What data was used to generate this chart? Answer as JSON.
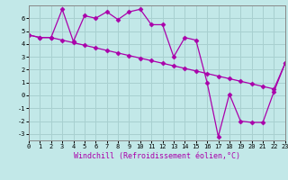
{
  "xlabel": "Windchill (Refroidissement éolien,°C)",
  "bg_color": "#c2e8e8",
  "grid_color": "#a8d0d0",
  "line_color": "#aa00aa",
  "line1": [
    4.7,
    4.5,
    4.5,
    6.7,
    4.2,
    6.2,
    6.0,
    6.5,
    5.9,
    6.5,
    6.7,
    5.5,
    5.5,
    3.0,
    4.5,
    4.3,
    1.0,
    -3.2,
    0.1,
    -2.0,
    -2.1,
    -2.1,
    0.3,
    2.5
  ],
  "line2": [
    4.7,
    4.5,
    4.5,
    4.3,
    4.1,
    3.9,
    3.7,
    3.5,
    3.3,
    3.1,
    2.9,
    2.7,
    2.5,
    2.3,
    2.1,
    1.9,
    1.7,
    1.5,
    1.3,
    1.1,
    0.9,
    0.7,
    0.5,
    2.5
  ],
  "x": [
    0,
    1,
    2,
    3,
    4,
    5,
    6,
    7,
    8,
    9,
    10,
    11,
    12,
    13,
    14,
    15,
    16,
    17,
    18,
    19,
    20,
    21,
    22,
    23
  ],
  "ylim": [
    -3.5,
    7.0
  ],
  "xlim": [
    0,
    23
  ],
  "yticks": [
    -3,
    -2,
    -1,
    0,
    1,
    2,
    3,
    4,
    5,
    6
  ],
  "xticks": [
    0,
    1,
    2,
    3,
    4,
    5,
    6,
    7,
    8,
    9,
    10,
    11,
    12,
    13,
    14,
    15,
    16,
    17,
    18,
    19,
    20,
    21,
    22,
    23
  ],
  "marker": "D",
  "markersize": 2.5,
  "linewidth": 0.9,
  "tick_fontsize": 5.0,
  "xlabel_fontsize": 6.0
}
